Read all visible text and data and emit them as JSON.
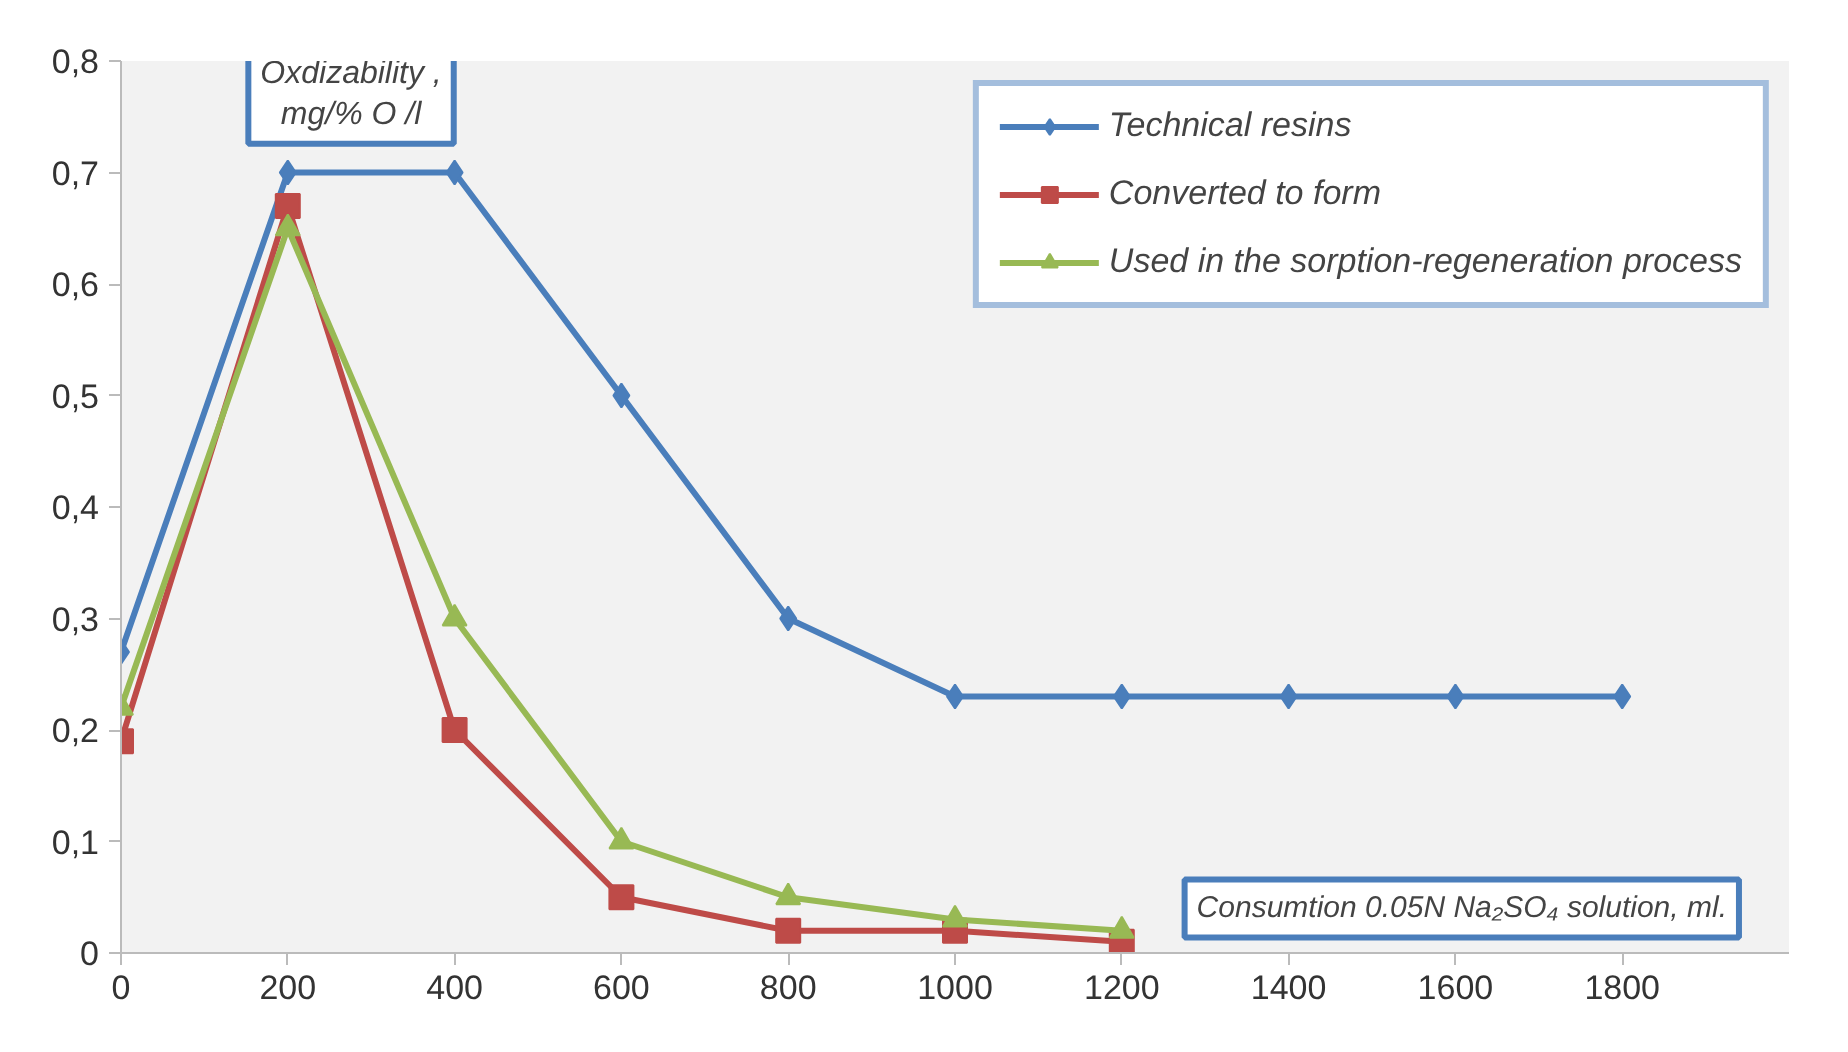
{
  "chart_data": {
    "type": "line",
    "ylabel": "Oxdizability ,\nmg/% O /l",
    "xlabel": "Consumtion 0.05N Na₂SO₄ solution, ml.",
    "x": [
      0,
      200,
      400,
      600,
      800,
      1000,
      1200,
      1400,
      1600,
      1800
    ],
    "series": [
      {
        "name": "Technical resins",
        "color": "#4a7ebb",
        "marker": "diamond",
        "values": [
          0.27,
          0.7,
          0.7,
          0.5,
          0.3,
          0.23,
          0.23,
          0.23,
          0.23,
          0.23
        ]
      },
      {
        "name": "Converted to form",
        "color": "#be4b48",
        "marker": "square",
        "values": [
          0.19,
          0.67,
          0.2,
          0.05,
          0.02,
          0.02,
          0.01,
          null,
          null,
          null
        ]
      },
      {
        "name": "Used in the sorption-regeneration process",
        "color": "#98b954",
        "marker": "triangle",
        "values": [
          0.22,
          0.65,
          0.3,
          0.1,
          0.05,
          0.03,
          0.02,
          null,
          null,
          null
        ]
      }
    ],
    "xlim": [
      0,
      2000
    ],
    "ylim": [
      0,
      0.8
    ],
    "xticks": [
      0,
      200,
      400,
      600,
      800,
      1000,
      1200,
      1400,
      1600,
      1800
    ],
    "yticks": [
      0,
      {
        "value": 0.1,
        "label": "0,1"
      },
      {
        "value": 0.2,
        "label": "0,2"
      },
      {
        "value": 0.3,
        "label": "0,3"
      },
      {
        "value": 0.4,
        "label": "0,4"
      },
      {
        "value": 0.5,
        "label": "0,5"
      },
      {
        "value": 0.6,
        "label": "0,6"
      },
      {
        "value": 0.7,
        "label": "0,7"
      },
      {
        "value": 0.8,
        "label": "0,8"
      }
    ],
    "grid": false,
    "legend": "top right",
    "line_style": "solid"
  }
}
